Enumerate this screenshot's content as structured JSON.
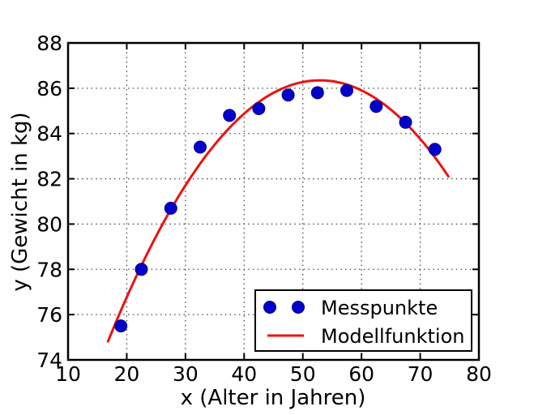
{
  "figure": {
    "background": "#ffffff"
  },
  "chart_data": {
    "type": "scatter",
    "title": "",
    "xlabel": "x (Alter in Jahren)",
    "ylabel": "y (Gewicht in kg)",
    "xlim": [
      10,
      80
    ],
    "ylim": [
      74,
      88
    ],
    "xticks": [
      10,
      20,
      30,
      40,
      50,
      60,
      70,
      80
    ],
    "yticks": [
      74,
      76,
      78,
      80,
      82,
      84,
      86,
      88
    ],
    "grid": true,
    "grid_style": "dotted",
    "grid_color": "#444444",
    "axis_color": "#000000",
    "legend": {
      "position": "lower right",
      "entries": [
        "Messpunkte",
        "Modellfunktion"
      ]
    },
    "series": [
      {
        "name": "Messpunkte",
        "type": "scatter",
        "color": "#0000cd",
        "edge_color": "#000080",
        "x": [
          19,
          22.5,
          27.5,
          32.5,
          37.5,
          42.5,
          47.5,
          52.5,
          57.5,
          62.5,
          67.5,
          72.5
        ],
        "y": [
          75.5,
          78.0,
          80.7,
          83.4,
          84.8,
          85.1,
          85.7,
          85.8,
          85.9,
          85.2,
          84.5,
          83.3
        ]
      },
      {
        "name": "Modellfunktion",
        "type": "line",
        "color": "#ee1111",
        "model": "quadratic",
        "model_formula": "y = k + a*(x-h)^2",
        "params": {
          "a": -0.00885,
          "h": 52.9,
          "k": 86.35
        },
        "domain": [
          16.8,
          74.8
        ]
      }
    ]
  }
}
